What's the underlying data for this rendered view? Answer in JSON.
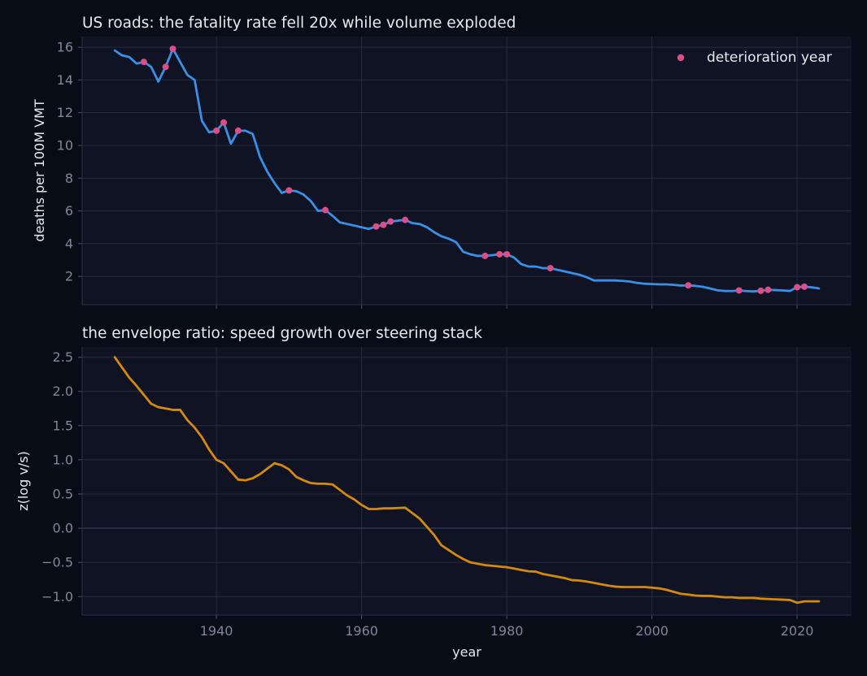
{
  "colors": {
    "background": "#080c16",
    "panel": "#0f1324",
    "fatality_line": "#3a8fe6",
    "deterioration_marker": "#d94f86",
    "envelope_line": "#d4890f",
    "text": "#e6e9ef",
    "tick": "#7d879c"
  },
  "chart_data": [
    {
      "type": "line",
      "title": "US roads: the fatality rate fell 20x while volume exploded",
      "xlabel": "",
      "ylabel": "deaths per 100M VMT",
      "xlim": [
        1921.5,
        2027.5
      ],
      "ylim": [
        0.27,
        16.65
      ],
      "xticks": [
        1940,
        1960,
        1980,
        2000,
        2020
      ],
      "yticks": [
        2,
        4,
        6,
        8,
        10,
        12,
        14,
        16
      ],
      "grid": true,
      "legend": {
        "placement": "top-right",
        "entries": [
          "deterioration year"
        ]
      },
      "series": [
        {
          "kind": "line",
          "x": [
            1926,
            1927,
            1928,
            1929,
            1930,
            1931,
            1932,
            1933,
            1934,
            1935,
            1936,
            1937,
            1938,
            1939,
            1940,
            1941,
            1942,
            1943,
            1944,
            1945,
            1946,
            1947,
            1948,
            1949,
            1950,
            1951,
            1952,
            1953,
            1954,
            1955,
            1956,
            1957,
            1958,
            1959,
            1960,
            1961,
            1962,
            1963,
            1964,
            1965,
            1966,
            1967,
            1968,
            1969,
            1970,
            1971,
            1972,
            1973,
            1974,
            1975,
            1976,
            1977,
            1978,
            1979,
            1980,
            1981,
            1982,
            1983,
            1984,
            1985,
            1986,
            1987,
            1988,
            1989,
            1990,
            1991,
            1992,
            1993,
            1994,
            1995,
            1996,
            1997,
            1998,
            1999,
            2000,
            2001,
            2002,
            2003,
            2004,
            2005,
            2006,
            2007,
            2008,
            2009,
            2010,
            2011,
            2012,
            2013,
            2014,
            2015,
            2016,
            2017,
            2018,
            2019,
            2020,
            2021,
            2022,
            2023
          ],
          "y": [
            15.8,
            15.5,
            15.4,
            15.0,
            15.1,
            14.8,
            13.9,
            14.8,
            15.9,
            15.1,
            14.3,
            14.0,
            11.5,
            10.8,
            10.9,
            11.4,
            10.1,
            10.9,
            10.9,
            10.7,
            9.3,
            8.4,
            7.7,
            7.1,
            7.25,
            7.2,
            7.0,
            6.6,
            6.0,
            6.05,
            5.7,
            5.3,
            5.2,
            5.1,
            5.0,
            4.9,
            5.05,
            5.15,
            5.35,
            5.4,
            5.45,
            5.25,
            5.2,
            5.0,
            4.7,
            4.45,
            4.3,
            4.1,
            3.5,
            3.35,
            3.25,
            3.25,
            3.3,
            3.35,
            3.35,
            3.15,
            2.75,
            2.6,
            2.6,
            2.5,
            2.5,
            2.4,
            2.3,
            2.2,
            2.1,
            1.95,
            1.75,
            1.75,
            1.75,
            1.75,
            1.72,
            1.68,
            1.6,
            1.55,
            1.53,
            1.51,
            1.51,
            1.48,
            1.44,
            1.45,
            1.42,
            1.36,
            1.26,
            1.15,
            1.11,
            1.1,
            1.14,
            1.1,
            1.08,
            1.12,
            1.18,
            1.16,
            1.14,
            1.11,
            1.34,
            1.37,
            1.33,
            1.26
          ]
        },
        {
          "name": "deterioration year",
          "kind": "scatter",
          "x": [
            1930,
            1933,
            1934,
            1940,
            1941,
            1943,
            1950,
            1955,
            1962,
            1963,
            1964,
            1966,
            1977,
            1979,
            1980,
            1986,
            2005,
            2012,
            2015,
            2016,
            2020,
            2021
          ],
          "y": [
            15.1,
            14.8,
            15.9,
            10.9,
            11.4,
            10.9,
            7.25,
            6.05,
            5.05,
            5.15,
            5.35,
            5.45,
            3.25,
            3.35,
            3.35,
            2.5,
            1.45,
            1.14,
            1.12,
            1.18,
            1.34,
            1.37
          ]
        }
      ]
    },
    {
      "type": "line",
      "title": "the envelope ratio: speed growth over steering stack",
      "xlabel": "year",
      "ylabel": "z(log v/s)",
      "xlim": [
        1921.5,
        2027.5
      ],
      "ylim": [
        -1.27,
        2.65
      ],
      "xticks": [
        1940,
        1960,
        1980,
        2000,
        2020
      ],
      "yticks": [
        2.5,
        2.0,
        1.5,
        1.0,
        0.5,
        0.0,
        -0.5,
        -1.0
      ],
      "ytick_labels": [
        "2.5",
        "2.0",
        "1.5",
        "1.0",
        "0.5",
        "0.0",
        "−0.5",
        "−1.0"
      ],
      "grid": true,
      "series": [
        {
          "kind": "line",
          "x": [
            1926,
            1927,
            1928,
            1929,
            1930,
            1931,
            1932,
            1933,
            1934,
            1935,
            1936,
            1937,
            1938,
            1939,
            1940,
            1941,
            1942,
            1943,
            1944,
            1945,
            1946,
            1947,
            1948,
            1949,
            1950,
            1951,
            1952,
            1953,
            1954,
            1955,
            1956,
            1957,
            1958,
            1959,
            1960,
            1961,
            1962,
            1963,
            1964,
            1965,
            1966,
            1967,
            1968,
            1969,
            1970,
            1971,
            1972,
            1973,
            1974,
            1975,
            1976,
            1977,
            1978,
            1979,
            1980,
            1981,
            1982,
            1983,
            1984,
            1985,
            1986,
            1987,
            1988,
            1989,
            1990,
            1991,
            1992,
            1993,
            1994,
            1995,
            1996,
            1997,
            1998,
            1999,
            2000,
            2001,
            2002,
            2003,
            2004,
            2005,
            2006,
            2007,
            2008,
            2009,
            2010,
            2011,
            2012,
            2013,
            2014,
            2015,
            2016,
            2017,
            2018,
            2019,
            2020,
            2021,
            2022,
            2023
          ],
          "y": [
            2.5,
            2.35,
            2.2,
            2.08,
            1.95,
            1.82,
            1.77,
            1.75,
            1.73,
            1.73,
            1.58,
            1.47,
            1.33,
            1.15,
            1.0,
            0.95,
            0.83,
            0.71,
            0.7,
            0.73,
            0.79,
            0.87,
            0.95,
            0.92,
            0.86,
            0.75,
            0.7,
            0.66,
            0.65,
            0.65,
            0.64,
            0.56,
            0.48,
            0.42,
            0.34,
            0.28,
            0.28,
            0.29,
            0.29,
            0.295,
            0.3,
            0.22,
            0.14,
            0.02,
            -0.1,
            -0.25,
            -0.32,
            -0.39,
            -0.45,
            -0.5,
            -0.52,
            -0.54,
            -0.55,
            -0.56,
            -0.57,
            -0.59,
            -0.61,
            -0.63,
            -0.635,
            -0.67,
            -0.69,
            -0.71,
            -0.73,
            -0.76,
            -0.765,
            -0.78,
            -0.8,
            -0.82,
            -0.84,
            -0.855,
            -0.86,
            -0.86,
            -0.86,
            -0.86,
            -0.87,
            -0.88,
            -0.9,
            -0.93,
            -0.96,
            -0.97,
            -0.985,
            -0.99,
            -0.99,
            -1.0,
            -1.01,
            -1.01,
            -1.02,
            -1.02,
            -1.02,
            -1.03,
            -1.035,
            -1.04,
            -1.045,
            -1.05,
            -1.09,
            -1.07,
            -1.07,
            -1.07
          ]
        }
      ]
    }
  ]
}
